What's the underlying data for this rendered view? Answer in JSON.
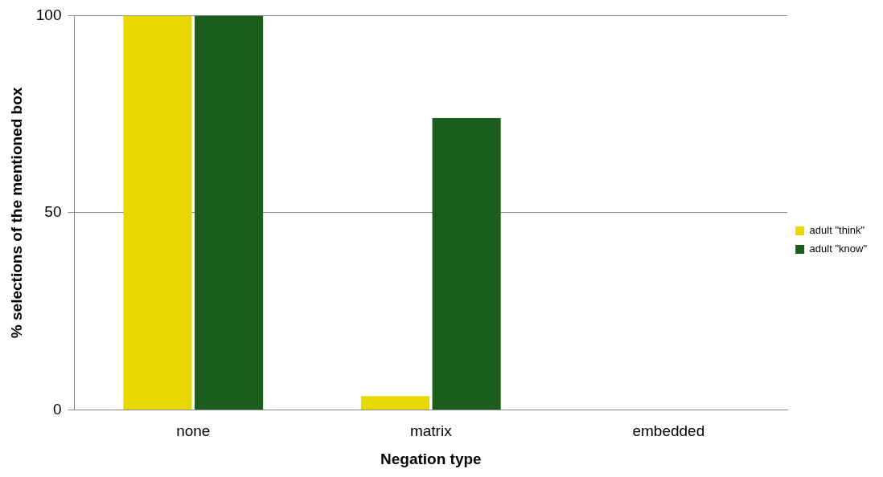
{
  "chart_data": {
    "type": "bar",
    "xlabel": "Negation type",
    "ylabel": "% selections of the mentioned box",
    "categories": [
      "none",
      "matrix",
      "embedded"
    ],
    "series": [
      {
        "name": "adult \"think\"",
        "color": "#e6d800",
        "values": [
          100,
          3.5,
          0
        ]
      },
      {
        "name": "adult \"know\"",
        "color": "#1b5e1b",
        "values": [
          100,
          74,
          0
        ]
      }
    ],
    "ylim": [
      0,
      100
    ],
    "yticks": [
      0,
      50,
      100
    ],
    "grid": "y",
    "legend": "right"
  }
}
